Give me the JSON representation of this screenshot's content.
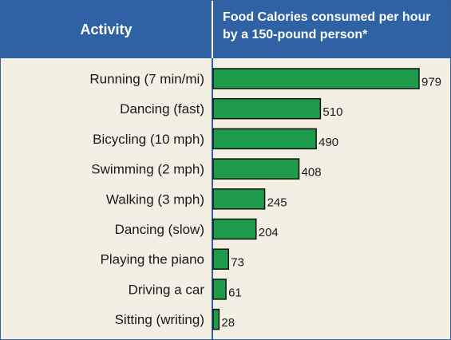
{
  "header": {
    "activity_label": "Activity",
    "calories_label_line1": "Food Calories consumed per hour",
    "calories_label_line2": "by a 150-pound person*"
  },
  "colors": {
    "header_bg": "#2e62a5",
    "panel_bg": "#f3efe2",
    "bar_fill": "#1e9a4b",
    "bar_stroke": "#111111"
  },
  "chart_data": {
    "type": "bar",
    "orientation": "horizontal",
    "categories": [
      "Running (7 min/mi)",
      "Dancing (fast)",
      "Bicycling (10 mph)",
      "Swimming (2 mph)",
      "Walking (3 mph)",
      "Dancing (slow)",
      "Playing the piano",
      "Driving a car",
      "Sitting (writing)"
    ],
    "values": [
      979,
      510,
      490,
      408,
      245,
      204,
      73,
      61,
      28
    ],
    "xlim": [
      0,
      979
    ],
    "grid": false,
    "legend": "none"
  }
}
